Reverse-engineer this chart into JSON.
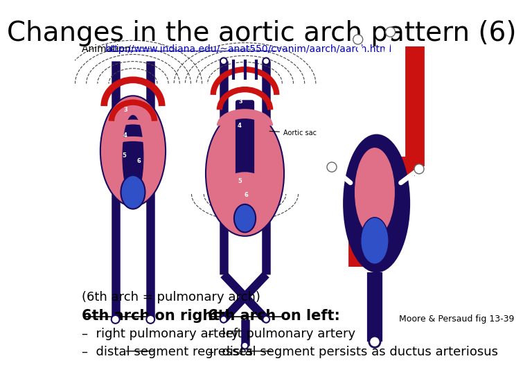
{
  "title": "Changes in the aortic arch pattern (6)",
  "title_fontsize": 28,
  "title_fontfamily": "DejaVu Sans",
  "animation_label": "Animation: ",
  "animation_url": "http://www.indiana.edu/~anat550/cvanim/aarch/aarch.html",
  "animation_fontsize": 10,
  "background_color": "#ffffff",
  "text_color": "#000000",
  "url_color": "#0000cc",
  "caption": "(6th arch = pulmonary arch)",
  "caption_fontsize": 13,
  "col1_header": "6th arch on right:",
  "col2_header": "6th arch on left:",
  "header_fontsize": 15,
  "col1_bullets": [
    "–  right pulmonary artery",
    "–  distal segment regresses"
  ],
  "col2_bullets": [
    "–  left pulmonary artery",
    "–  distal segment persists as ductus arteriosus"
  ],
  "bullet_fontsize": 13,
  "source_text": "Moore & Persaud fig 13-39",
  "source_fontsize": 9
}
